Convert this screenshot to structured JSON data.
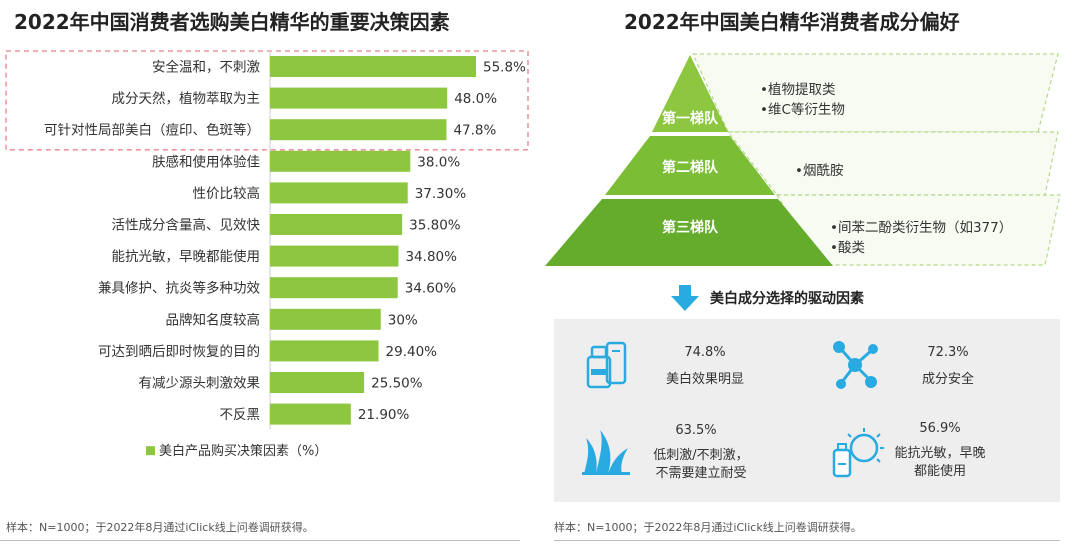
{
  "left": {
    "title": "2022年中国消费者选购美白精华的重要决策因素",
    "chart_data": {
      "type": "bar",
      "orientation": "horizontal",
      "categories": [
        "安全温和，不刺激",
        "成分天然，植物萃取为主",
        "可针对性局部美白（痘印、色斑等）",
        "肤感和使用体验佳",
        "性价比较高",
        "活性成分含量高、见效快",
        "能抗光敏，早晚都能使用",
        "兼具修护、抗炎等多种功效",
        "品牌知名度较高",
        "可达到晒后即时恢复的目的",
        "有减少源头刺激效果",
        "不反黑"
      ],
      "values": [
        55.8,
        48.0,
        47.8,
        38.0,
        37.3,
        35.8,
        34.8,
        34.6,
        30,
        29.4,
        25.5,
        21.9
      ],
      "value_labels": [
        "55.8%",
        "48.0%",
        "47.8%",
        "38.0%",
        "37.30%",
        "35.80%",
        "34.80%",
        "34.60%",
        "30%",
        "29.40%",
        "25.50%",
        "21.90%"
      ],
      "series": [
        {
          "name": "美白产品购买决策因素（%）",
          "values": [
            55.8,
            48.0,
            47.8,
            38.0,
            37.3,
            35.8,
            34.8,
            34.6,
            30,
            29.4,
            25.5,
            21.9
          ]
        }
      ],
      "highlighted_count": 3,
      "legend_placement": "bottom",
      "grid": false,
      "xlim": [
        0,
        60
      ],
      "colors": {
        "bar": "#8dc63f",
        "highlight_border": "#e8828a"
      }
    },
    "legend_label": "美白产品购买决策因素（%）",
    "note": "样本：N=1000；于2022年8月通过iClick线上问卷调研获得。"
  },
  "right": {
    "title": "2022年中国美白精华消费者成分偏好",
    "pyramid": {
      "tiers": [
        {
          "label": "第一梯队",
          "items": [
            "•植物提取类",
            "•维C等衍生物"
          ],
          "color": "#8dc63f"
        },
        {
          "label": "第二梯队",
          "items": [
            "•烟酰胺"
          ],
          "color": "#7bbd35"
        },
        {
          "label": "第三梯队",
          "items": [
            "•间苯二酚类衍生物（如377）",
            "•酸类"
          ],
          "color": "#65ab2c"
        }
      ]
    },
    "drivers_title": "美白成分选择的驱动因素",
    "drivers": [
      {
        "pct": "74.8%",
        "label": "美白效果明显",
        "icon": "serum-bottle-icon"
      },
      {
        "pct": "72.3%",
        "label": "成分安全",
        "icon": "molecule-icon"
      },
      {
        "pct": "63.5%",
        "label": "低刺激/不刺激，\n不需要建立耐受",
        "icon": "grass-icon"
      },
      {
        "pct": "56.9%",
        "label": "能抗光敏，早晚\n都能使用",
        "icon": "sun-bottle-icon"
      }
    ],
    "note": "样本：N=1000；于2022年8月通过iClick线上问卷调研获得。",
    "colors": {
      "accent_blue": "#29abe2",
      "dashed_border": "#b5d98a",
      "box_bg": "#eeeeee"
    }
  }
}
